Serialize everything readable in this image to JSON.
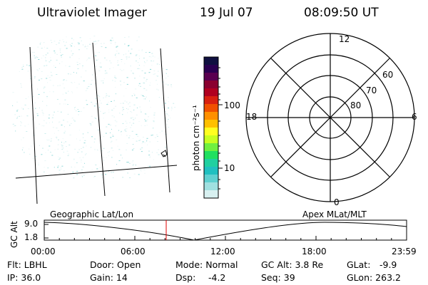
{
  "header": {
    "title": "Ultraviolet Imager",
    "date": "19 Jul 07",
    "time": "08:09:50 UT"
  },
  "colorbar": {
    "label": "photon cm⁻²s⁻¹",
    "ticks": [
      "100",
      "10"
    ],
    "colors": [
      "#101040",
      "#2a0050",
      "#5a0050",
      "#8a0030",
      "#b00020",
      "#d82010",
      "#f05000",
      "#ff9000",
      "#ffc000",
      "#ffff20",
      "#c8ff20",
      "#70f040",
      "#20e060",
      "#20d0a0",
      "#20c0c0",
      "#60d0d0",
      "#a0e0e0",
      "#d8f0f0"
    ]
  },
  "polar": {
    "lat_labels": [
      "60",
      "70",
      "80"
    ],
    "mlt_labels": {
      "top": "12",
      "left": "18",
      "right": "6",
      "bottom": "0"
    }
  },
  "timeline": {
    "ylabel": "GC Alt",
    "yticks": [
      "9.0",
      "1.8"
    ],
    "left_title": "Geographic Lat/Lon",
    "right_title": "Apex MLat/MLT",
    "xticks": [
      "00:00",
      "06:00",
      "12:00",
      "18:00",
      "23:59"
    ],
    "marker_color": "#e00000"
  },
  "info": {
    "flt": "Flt: LBHL",
    "ip": "IP: 36.0",
    "door": "Door: Open",
    "gain": "Gain: 14",
    "mode": "Mode: Normal",
    "dsp": "Dsp:",
    "dsp_value": "-4.2",
    "gcalt": "GC Alt: 3.8 Re",
    "seq": "Seq: 39",
    "glat": "GLat:",
    "glat_value": "-9.9",
    "glon": "GLon: 263.2"
  }
}
